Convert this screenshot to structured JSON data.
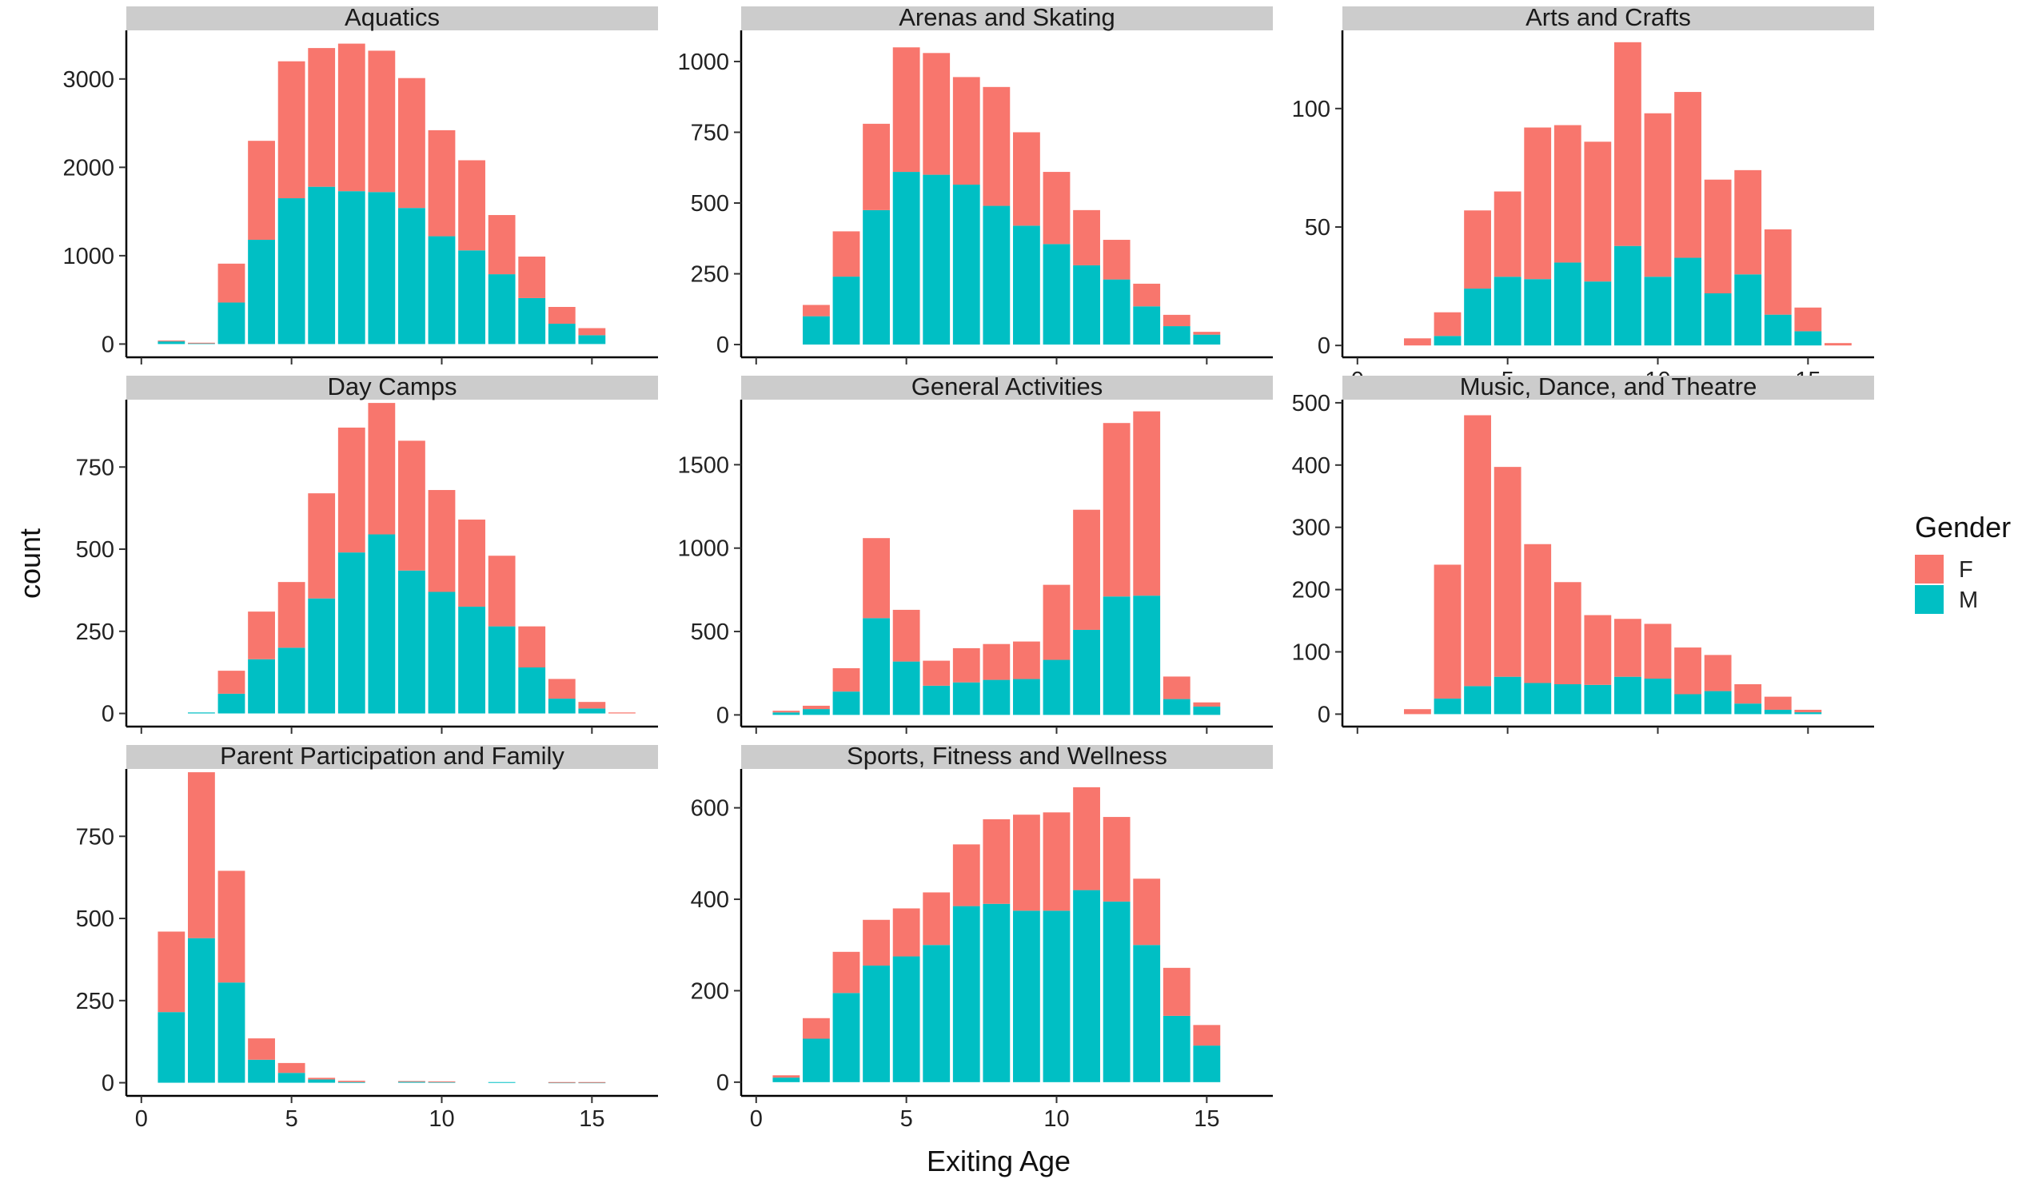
{
  "chart_data": {
    "type": "bar",
    "stacked": true,
    "x_label": "Exiting Age",
    "y_label": "count",
    "x_ticks": [
      0,
      5,
      10,
      15
    ],
    "x_range": [
      -0.5,
      17.2
    ],
    "legend": {
      "title": "Gender",
      "position": "right",
      "entries": [
        {
          "label": "F",
          "color": "#F8766D"
        },
        {
          "label": "M",
          "color": "#00BFC4"
        }
      ]
    },
    "series_order": [
      "M",
      "F"
    ],
    "colors": {
      "F": "#F8766D",
      "M": "#00BFC4"
    },
    "panels": [
      {
        "title": "Aquatics",
        "y_range": [
          -150,
          3550
        ],
        "y_ticks": [
          0,
          1000,
          2000,
          3000
        ],
        "bars": [
          {
            "x": 1,
            "M": 30,
            "F": 10
          },
          {
            "x": 2,
            "M": 10,
            "F": 5
          },
          {
            "x": 3,
            "M": 470,
            "F": 440
          },
          {
            "x": 4,
            "M": 1180,
            "F": 1120
          },
          {
            "x": 5,
            "M": 1650,
            "F": 1550
          },
          {
            "x": 6,
            "M": 1780,
            "F": 1570
          },
          {
            "x": 7,
            "M": 1730,
            "F": 1670
          },
          {
            "x": 8,
            "M": 1720,
            "F": 1600
          },
          {
            "x": 9,
            "M": 1540,
            "F": 1470
          },
          {
            "x": 10,
            "M": 1220,
            "F": 1200
          },
          {
            "x": 11,
            "M": 1060,
            "F": 1020
          },
          {
            "x": 12,
            "M": 790,
            "F": 670
          },
          {
            "x": 13,
            "M": 520,
            "F": 470
          },
          {
            "x": 14,
            "M": 230,
            "F": 190
          },
          {
            "x": 15,
            "M": 100,
            "F": 80
          }
        ]
      },
      {
        "title": "Arenas and Skating",
        "y_range": [
          -45,
          1110
        ],
        "y_ticks": [
          0,
          250,
          500,
          750,
          1000
        ],
        "bars": [
          {
            "x": 2,
            "M": 100,
            "F": 40
          },
          {
            "x": 3,
            "M": 240,
            "F": 160
          },
          {
            "x": 4,
            "M": 475,
            "F": 305
          },
          {
            "x": 5,
            "M": 610,
            "F": 440
          },
          {
            "x": 6,
            "M": 600,
            "F": 430
          },
          {
            "x": 7,
            "M": 565,
            "F": 380
          },
          {
            "x": 8,
            "M": 490,
            "F": 420
          },
          {
            "x": 9,
            "M": 420,
            "F": 330
          },
          {
            "x": 10,
            "M": 355,
            "F": 255
          },
          {
            "x": 11,
            "M": 280,
            "F": 195
          },
          {
            "x": 12,
            "M": 230,
            "F": 140
          },
          {
            "x": 13,
            "M": 135,
            "F": 80
          },
          {
            "x": 14,
            "M": 65,
            "F": 40
          },
          {
            "x": 15,
            "M": 35,
            "F": 10
          }
        ]
      },
      {
        "title": "Arts and Crafts",
        "y_range": [
          -5,
          133
        ],
        "y_ticks": [
          0,
          50,
          100
        ],
        "bars": [
          {
            "x": 2,
            "M": 0,
            "F": 3
          },
          {
            "x": 3,
            "M": 4,
            "F": 10
          },
          {
            "x": 4,
            "M": 24,
            "F": 33
          },
          {
            "x": 5,
            "M": 29,
            "F": 36
          },
          {
            "x": 6,
            "M": 28,
            "F": 64
          },
          {
            "x": 7,
            "M": 35,
            "F": 58
          },
          {
            "x": 8,
            "M": 27,
            "F": 59
          },
          {
            "x": 9,
            "M": 42,
            "F": 86
          },
          {
            "x": 10,
            "M": 29,
            "F": 69
          },
          {
            "x": 11,
            "M": 37,
            "F": 70
          },
          {
            "x": 12,
            "M": 22,
            "F": 48
          },
          {
            "x": 13,
            "M": 30,
            "F": 44
          },
          {
            "x": 14,
            "M": 13,
            "F": 36
          },
          {
            "x": 15,
            "M": 6,
            "F": 10
          },
          {
            "x": 16,
            "M": 0,
            "F": 1
          }
        ]
      },
      {
        "title": "Day Camps",
        "y_range": [
          -40,
          955
        ],
        "y_ticks": [
          0,
          250,
          500,
          750
        ],
        "bars": [
          {
            "x": 2,
            "M": 3,
            "F": 0
          },
          {
            "x": 3,
            "M": 60,
            "F": 70
          },
          {
            "x": 4,
            "M": 165,
            "F": 145
          },
          {
            "x": 5,
            "M": 200,
            "F": 200
          },
          {
            "x": 6,
            "M": 350,
            "F": 320
          },
          {
            "x": 7,
            "M": 490,
            "F": 380
          },
          {
            "x": 8,
            "M": 545,
            "F": 400
          },
          {
            "x": 9,
            "M": 435,
            "F": 395
          },
          {
            "x": 10,
            "M": 370,
            "F": 310
          },
          {
            "x": 11,
            "M": 325,
            "F": 265
          },
          {
            "x": 12,
            "M": 265,
            "F": 215
          },
          {
            "x": 13,
            "M": 140,
            "F": 125
          },
          {
            "x": 14,
            "M": 45,
            "F": 60
          },
          {
            "x": 15,
            "M": 15,
            "F": 20
          },
          {
            "x": 16,
            "M": 0,
            "F": 3
          }
        ]
      },
      {
        "title": "General Activities",
        "y_range": [
          -70,
          1890
        ],
        "y_ticks": [
          0,
          500,
          1000,
          1500
        ],
        "bars": [
          {
            "x": 1,
            "M": 15,
            "F": 10
          },
          {
            "x": 2,
            "M": 35,
            "F": 20
          },
          {
            "x": 3,
            "M": 140,
            "F": 140
          },
          {
            "x": 4,
            "M": 580,
            "F": 480
          },
          {
            "x": 5,
            "M": 320,
            "F": 310
          },
          {
            "x": 6,
            "M": 175,
            "F": 150
          },
          {
            "x": 7,
            "M": 195,
            "F": 205
          },
          {
            "x": 8,
            "M": 210,
            "F": 215
          },
          {
            "x": 9,
            "M": 215,
            "F": 225
          },
          {
            "x": 10,
            "M": 330,
            "F": 450
          },
          {
            "x": 11,
            "M": 510,
            "F": 720
          },
          {
            "x": 12,
            "M": 710,
            "F": 1040
          },
          {
            "x": 13,
            "M": 715,
            "F": 1105
          },
          {
            "x": 14,
            "M": 95,
            "F": 135
          },
          {
            "x": 15,
            "M": 50,
            "F": 25
          }
        ]
      },
      {
        "title": "Music, Dance, and Theatre",
        "y_range": [
          -20,
          505
        ],
        "y_ticks": [
          0,
          100,
          200,
          300,
          400,
          500
        ],
        "bars": [
          {
            "x": 2,
            "M": 0,
            "F": 8
          },
          {
            "x": 3,
            "M": 25,
            "F": 215
          },
          {
            "x": 4,
            "M": 45,
            "F": 435
          },
          {
            "x": 5,
            "M": 60,
            "F": 337
          },
          {
            "x": 6,
            "M": 50,
            "F": 223
          },
          {
            "x": 7,
            "M": 48,
            "F": 164
          },
          {
            "x": 8,
            "M": 47,
            "F": 112
          },
          {
            "x": 9,
            "M": 60,
            "F": 93
          },
          {
            "x": 10,
            "M": 57,
            "F": 88
          },
          {
            "x": 11,
            "M": 32,
            "F": 75
          },
          {
            "x": 12,
            "M": 37,
            "F": 58
          },
          {
            "x": 13,
            "M": 17,
            "F": 31
          },
          {
            "x": 14,
            "M": 7,
            "F": 21
          },
          {
            "x": 15,
            "M": 3,
            "F": 4
          }
        ]
      },
      {
        "title": "Parent Participation and Family",
        "y_range": [
          -40,
          955
        ],
        "y_ticks": [
          0,
          250,
          500,
          750
        ],
        "bars": [
          {
            "x": 1,
            "M": 215,
            "F": 245
          },
          {
            "x": 2,
            "M": 440,
            "F": 505
          },
          {
            "x": 3,
            "M": 305,
            "F": 340
          },
          {
            "x": 4,
            "M": 70,
            "F": 65
          },
          {
            "x": 5,
            "M": 30,
            "F": 30
          },
          {
            "x": 6,
            "M": 10,
            "F": 5
          },
          {
            "x": 7,
            "M": 2,
            "F": 4
          },
          {
            "x": 9,
            "M": 4,
            "F": 1
          },
          {
            "x": 10,
            "M": 3,
            "F": 1
          },
          {
            "x": 12,
            "M": 2,
            "F": 0
          },
          {
            "x": 14,
            "M": 1,
            "F": 1
          },
          {
            "x": 15,
            "M": 1,
            "F": 1
          }
        ]
      },
      {
        "title": "Sports, Fitness and Wellness",
        "y_range": [
          -30,
          685
        ],
        "y_ticks": [
          0,
          200,
          400,
          600
        ],
        "bars": [
          {
            "x": 1,
            "M": 10,
            "F": 5
          },
          {
            "x": 2,
            "M": 95,
            "F": 45
          },
          {
            "x": 3,
            "M": 195,
            "F": 90
          },
          {
            "x": 4,
            "M": 255,
            "F": 100
          },
          {
            "x": 5,
            "M": 275,
            "F": 105
          },
          {
            "x": 6,
            "M": 300,
            "F": 115
          },
          {
            "x": 7,
            "M": 385,
            "F": 135
          },
          {
            "x": 8,
            "M": 390,
            "F": 185
          },
          {
            "x": 9,
            "M": 375,
            "F": 210
          },
          {
            "x": 10,
            "M": 375,
            "F": 215
          },
          {
            "x": 11,
            "M": 420,
            "F": 225
          },
          {
            "x": 12,
            "M": 395,
            "F": 185
          },
          {
            "x": 13,
            "M": 300,
            "F": 145
          },
          {
            "x": 14,
            "M": 145,
            "F": 105
          },
          {
            "x": 15,
            "M": 80,
            "F": 45
          }
        ]
      }
    ]
  }
}
